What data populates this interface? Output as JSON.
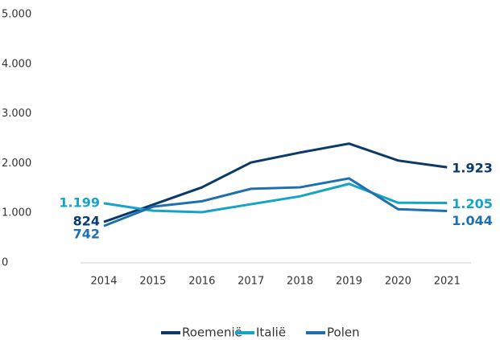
{
  "chart_data": {
    "type": "line",
    "categories": [
      "2014",
      "2015",
      "2016",
      "2017",
      "2018",
      "2019",
      "2020",
      "2021"
    ],
    "series": [
      {
        "name": "Roemenië",
        "color": "#0b3a6a",
        "values": [
          824,
          1170,
          1520,
          2020,
          2220,
          2400,
          2060,
          1923
        ],
        "value_labels": [
          "824",
          null,
          null,
          null,
          null,
          null,
          null,
          "1.923"
        ]
      },
      {
        "name": "Italië",
        "color": "#15a3c9",
        "values": [
          1199,
          1050,
          1020,
          1180,
          1340,
          1590,
          1210,
          1205
        ],
        "value_labels": [
          "1.199",
          null,
          null,
          null,
          null,
          null,
          null,
          "1.205"
        ]
      },
      {
        "name": "Polen",
        "color": "#1e6fb0",
        "values": [
          742,
          1130,
          1240,
          1490,
          1520,
          1700,
          1080,
          1044
        ],
        "value_labels": [
          "742",
          null,
          null,
          null,
          null,
          null,
          null,
          "1.044"
        ]
      }
    ],
    "ylim": [
      0,
      5000
    ],
    "yticks": [
      0,
      {
        "value": 1000,
        "label": "1.000"
      },
      {
        "value": 2000,
        "label": "2.000"
      },
      {
        "value": 3000,
        "label": "3.000"
      },
      {
        "value": 4000,
        "label": "4.000"
      },
      {
        "value": 5000,
        "label": "5.000"
      }
    ],
    "grid": false
  }
}
